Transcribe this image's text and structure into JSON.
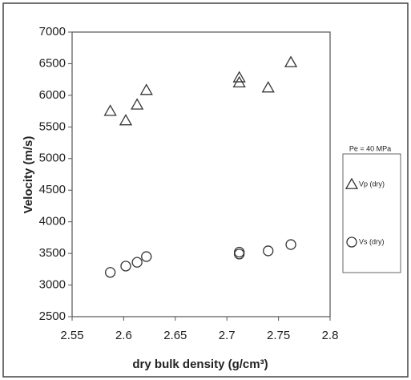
{
  "chart_data": {
    "type": "scatter",
    "xlabel": "dry bulk density  (g/cm³)",
    "ylabel": "Velocity  (m/s)",
    "annotation": "Pe = 40 MPa",
    "xlim": [
      2.55,
      2.8
    ],
    "xticks": [
      2.55,
      2.6,
      2.65,
      2.7,
      2.75,
      2.8
    ],
    "ylim": [
      2500,
      7000
    ],
    "yticks": [
      2500,
      3000,
      3500,
      4000,
      4500,
      5000,
      5500,
      6000,
      6500,
      7000
    ],
    "series": [
      {
        "name": "Vp (dry)",
        "marker": "triangle",
        "color": "#333333",
        "x": [
          2.587,
          2.602,
          2.613,
          2.622,
          2.712,
          2.712,
          2.74,
          2.762
        ],
        "values": [
          5750,
          5600,
          5850,
          6080,
          6280,
          6200,
          6120,
          6520
        ]
      },
      {
        "name": "Vs (dry)",
        "marker": "circle",
        "color": "#333333",
        "x": [
          2.587,
          2.602,
          2.613,
          2.622,
          2.712,
          2.712,
          2.74,
          2.762
        ],
        "values": [
          3200,
          3300,
          3360,
          3450,
          3520,
          3490,
          3540,
          3640
        ]
      }
    ]
  }
}
